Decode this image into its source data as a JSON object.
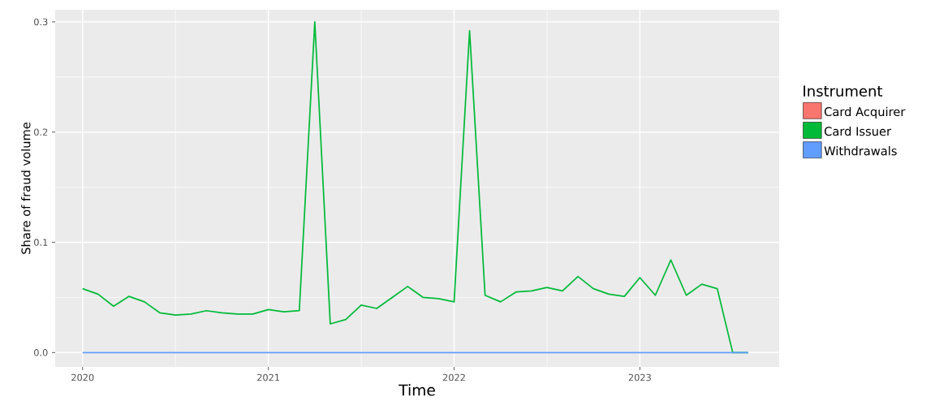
{
  "chart_data": {
    "type": "line",
    "xlabel": "Time",
    "ylabel": "Share of fraud volume",
    "legend_title": "Instrument",
    "legend": "right",
    "grid": true,
    "x": [
      "2020-01",
      "2020-02",
      "2020-03",
      "2020-04",
      "2020-05",
      "2020-06",
      "2020-07",
      "2020-08",
      "2020-09",
      "2020-10",
      "2020-11",
      "2020-12",
      "2021-01",
      "2021-02",
      "2021-03",
      "2021-04",
      "2021-05",
      "2021-06",
      "2021-07",
      "2021-08",
      "2021-09",
      "2021-10",
      "2021-11",
      "2021-12",
      "2022-01",
      "2022-02",
      "2022-03",
      "2022-04",
      "2022-05",
      "2022-06",
      "2022-07",
      "2022-08",
      "2022-09",
      "2022-10",
      "2022-11",
      "2022-12",
      "2023-01",
      "2023-02",
      "2023-03",
      "2023-04",
      "2023-05",
      "2023-06",
      "2023-07",
      "2023-08"
    ],
    "series": [
      {
        "name": "Card Acquirer",
        "color": "#f8766d",
        "values": [
          null,
          null,
          null,
          null,
          null,
          null,
          null,
          null,
          null,
          null,
          null,
          null,
          null,
          null,
          null,
          null,
          null,
          null,
          null,
          null,
          null,
          null,
          null,
          null,
          null,
          null,
          null,
          null,
          null,
          null,
          null,
          null,
          null,
          null,
          null,
          null,
          null,
          null,
          null,
          null,
          null,
          null,
          null,
          null
        ]
      },
      {
        "name": "Card Issuer",
        "color": "#00ba38",
        "values": [
          0.058,
          0.053,
          0.042,
          0.051,
          0.046,
          0.036,
          0.034,
          0.035,
          0.038,
          0.036,
          0.035,
          0.035,
          0.039,
          0.037,
          0.038,
          0.3,
          0.026,
          0.03,
          0.043,
          0.04,
          0.05,
          0.06,
          0.05,
          0.049,
          0.046,
          0.292,
          0.052,
          0.046,
          0.055,
          0.056,
          0.059,
          0.056,
          0.069,
          0.058,
          0.053,
          0.051,
          0.068,
          0.052,
          0.084,
          0.052,
          0.062,
          0.058,
          0.0,
          0.0
        ]
      },
      {
        "name": "Withdrawals",
        "color": "#619cff",
        "values": [
          0,
          0,
          0,
          0,
          0,
          0,
          0,
          0,
          0,
          0,
          0,
          0,
          0,
          0,
          0,
          0,
          0,
          0,
          0,
          0,
          0,
          0,
          0,
          0,
          0,
          0,
          0,
          0,
          0,
          0,
          0,
          0,
          0,
          0,
          0,
          0,
          0,
          0,
          0,
          0,
          0,
          0,
          0,
          0
        ]
      }
    ],
    "xlim": [
      "2019-11-08",
      "2023-10-01"
    ],
    "xticks": [
      "2020",
      "2021",
      "2022",
      "2023"
    ],
    "ylim": [
      -0.013,
      0.311
    ],
    "yticks": [
      {
        "value": 0,
        "label": "0.0"
      },
      0.1,
      0.2,
      0.3
    ]
  }
}
